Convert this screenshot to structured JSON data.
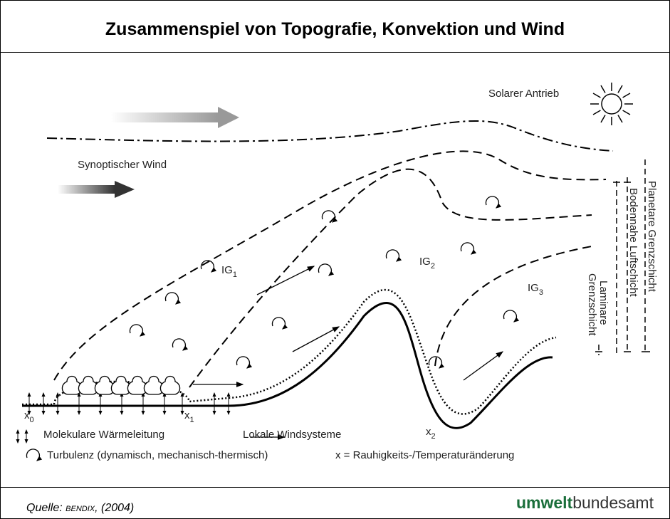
{
  "title": "Zusammenspiel von Topografie, Konvektion und Wind",
  "diagram": {
    "solar": "Solarer Antrieb",
    "synoptic_wind": "Synoptischer Wind",
    "zones": [
      {
        "base": "IG",
        "sub": "1"
      },
      {
        "base": "IG",
        "sub": "2"
      },
      {
        "base": "IG",
        "sub": "3"
      }
    ],
    "points": [
      {
        "base": "x",
        "sub": "0"
      },
      {
        "base": "x",
        "sub": "1"
      },
      {
        "base": "x",
        "sub": "2"
      }
    ],
    "layers": {
      "planetary": "Planetare Grenzschicht",
      "surface": "Bodennahe Luftschicht",
      "laminar": [
        "Laminare",
        "Grenzschicht"
      ]
    }
  },
  "legend": {
    "conduction": "Molekulare Wärmeleitung",
    "local_wind": "Lokale Windsysteme",
    "turbulence": "Turbulenz (dynamisch, mechanisch-thermisch)",
    "roughness": "x = Rauhigkeits-/Temperaturänderung"
  },
  "footer": {
    "source_prefix": "Quelle: ",
    "source_author": "Bendix",
    "source_suffix": ", (2004)",
    "logo_bold": "umwelt",
    "logo_rest": "bundesamt"
  }
}
